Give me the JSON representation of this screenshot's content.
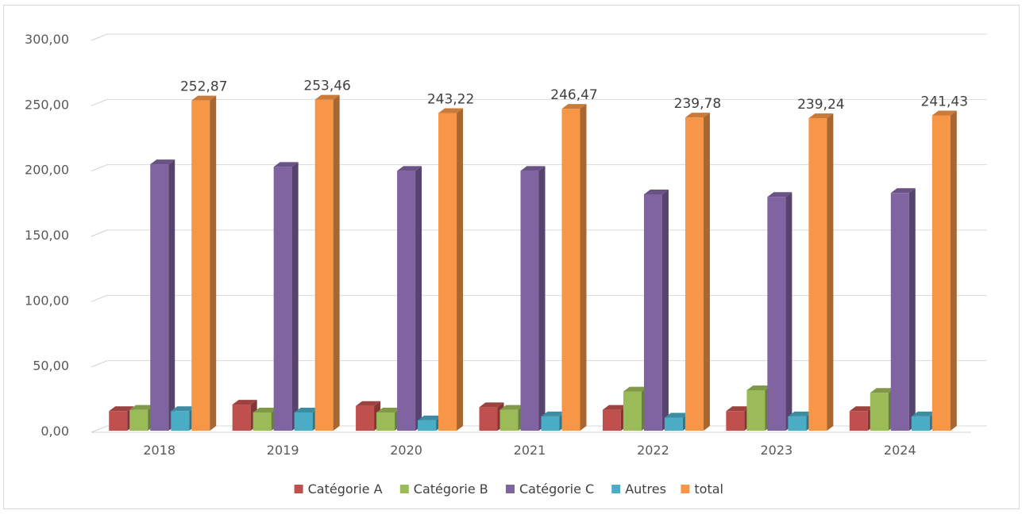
{
  "chart_data": {
    "type": "bar",
    "title": "",
    "xlabel": "",
    "ylabel": "",
    "categories": [
      "2018",
      "2019",
      "2020",
      "2021",
      "2022",
      "2023",
      "2024"
    ],
    "ylim": [
      0,
      300
    ],
    "yticks": [
      "0,00",
      "50,00",
      "100,00",
      "150,00",
      "200,00",
      "250,00",
      "300,00"
    ],
    "grid": true,
    "legend_position": "bottom",
    "series": [
      {
        "name": "Catégorie A",
        "color": "#c0504d",
        "values": [
          15,
          20,
          19,
          18,
          16,
          15,
          15
        ]
      },
      {
        "name": "Catégorie B",
        "color": "#9bbb59",
        "values": [
          16,
          14,
          14,
          16,
          30,
          31,
          29
        ]
      },
      {
        "name": "Catégorie C",
        "color": "#8064a2",
        "values": [
          204,
          202,
          199,
          199,
          181,
          179,
          182
        ]
      },
      {
        "name": "Autres",
        "color": "#4bacc6",
        "values": [
          15,
          14,
          8,
          11,
          10,
          11,
          11
        ]
      },
      {
        "name": "total",
        "color": "#f79646",
        "values": [
          252.87,
          253.46,
          243.22,
          246.47,
          239.78,
          239.24,
          241.43
        ],
        "data_labels": [
          "252,87",
          "253,46",
          "243,22",
          "246,47",
          "239,78",
          "239,24",
          "241,43"
        ]
      }
    ]
  }
}
